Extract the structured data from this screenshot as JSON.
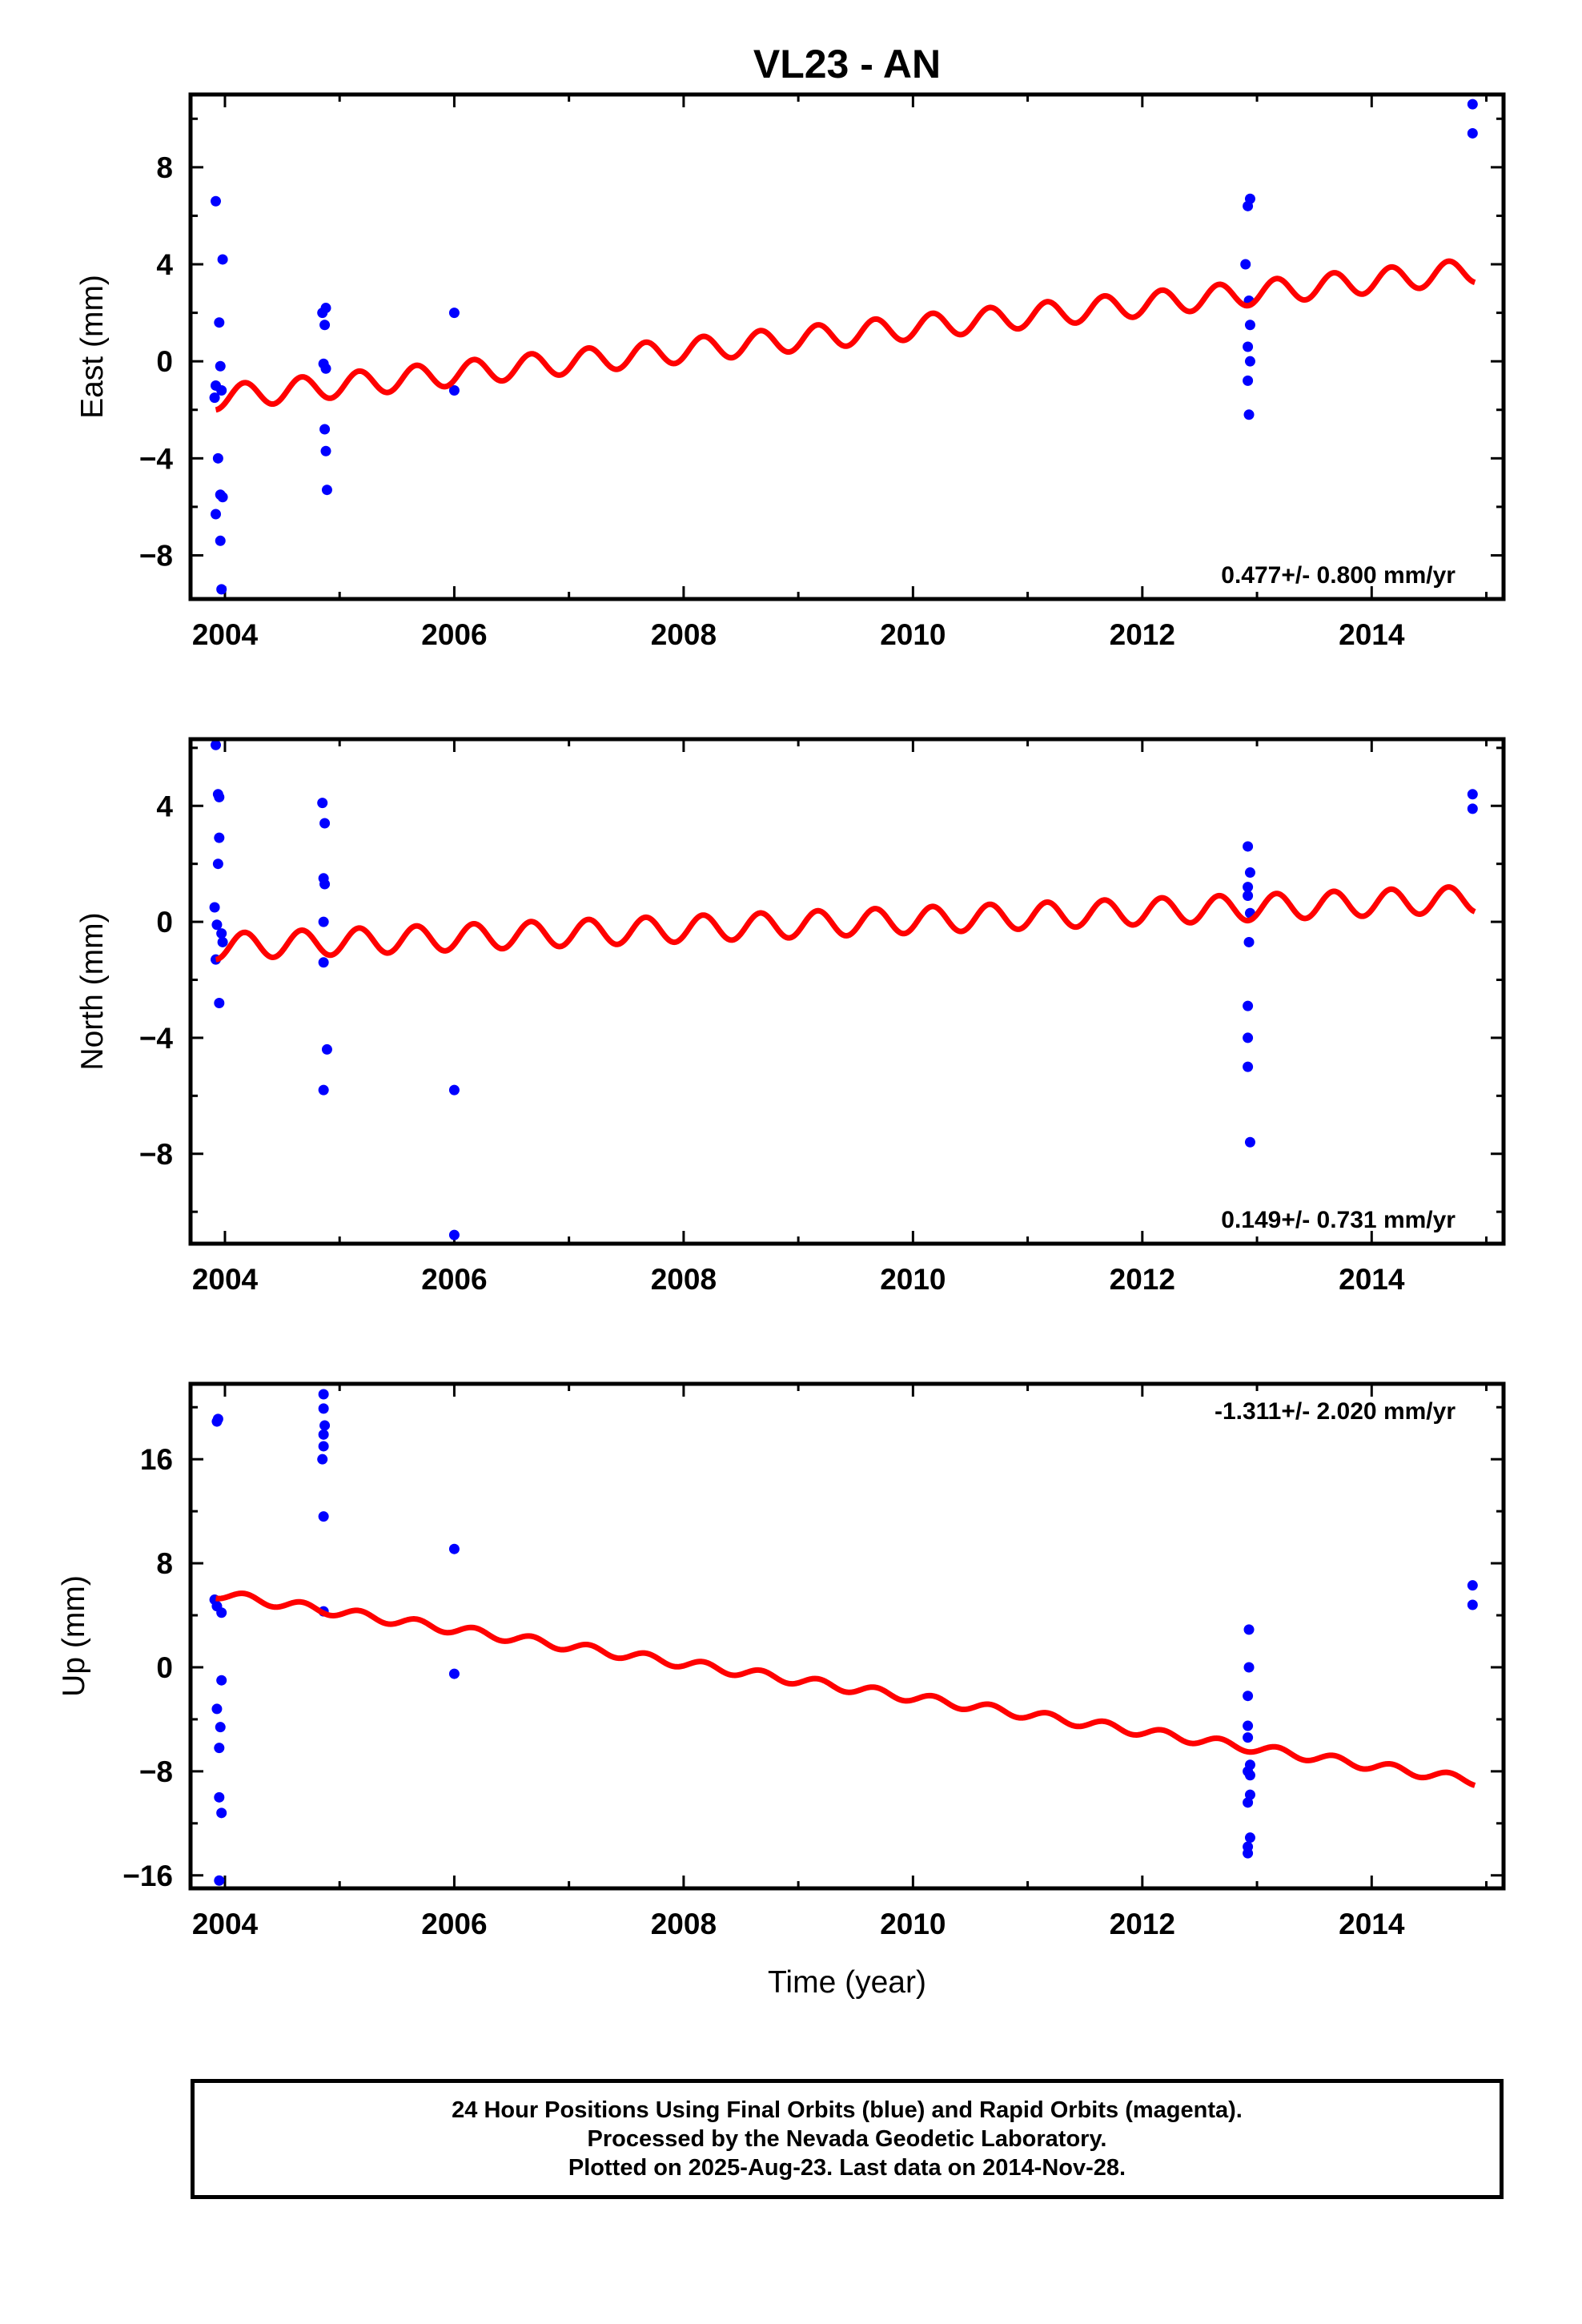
{
  "title": "VL23 - AN",
  "footer": {
    "line1": "24 Hour Positions Using Final Orbits (blue) and Rapid Orbits (magenta).",
    "line2": "Processed by the Nevada Geodetic Laboratory.",
    "line3": "Plotted on 2025-Aug-23. Last data on 2014-Nov-28."
  },
  "colors": {
    "final_orbits": "#0000ff",
    "model_fit": "#ff0000"
  },
  "chart_data": [
    {
      "type": "scatter",
      "name": "east",
      "title": "VL23 - AN",
      "xlabel": "",
      "ylabel": "East (mm)",
      "xlim": [
        2003.7,
        2015.15
      ],
      "ylim": [
        -9.8,
        11.0
      ],
      "xticks": [
        2004,
        2006,
        2008,
        2010,
        2012,
        2014
      ],
      "yticks": [
        -8,
        -4,
        0,
        4,
        8
      ],
      "ytick_labels": [
        "−8",
        "−4",
        "0",
        "4",
        "8"
      ],
      "rate": "0.477+/- 0.800 mm/yr",
      "rate_position": "bottom-right",
      "points": [
        [
          2003.92,
          6.6
        ],
        [
          2003.92,
          -1.0
        ],
        [
          2003.91,
          -1.5
        ],
        [
          2003.92,
          -6.3
        ],
        [
          2003.94,
          -4.0
        ],
        [
          2003.95,
          1.6
        ],
        [
          2003.96,
          -0.2
        ],
        [
          2003.97,
          -1.2
        ],
        [
          2003.96,
          -5.5
        ],
        [
          2003.98,
          -5.6
        ],
        [
          2003.96,
          -7.4
        ],
        [
          2003.97,
          -9.4
        ],
        [
          2003.98,
          4.2
        ],
        [
          2004.85,
          2.0
        ],
        [
          2004.87,
          1.5
        ],
        [
          2004.88,
          2.2
        ],
        [
          2004.86,
          -0.1
        ],
        [
          2004.88,
          -0.3
        ],
        [
          2004.87,
          -2.8
        ],
        [
          2004.88,
          -3.7
        ],
        [
          2004.89,
          -5.3
        ],
        [
          2006.0,
          2.0
        ],
        [
          2006.0,
          -1.2
        ],
        [
          2012.9,
          4.0
        ],
        [
          2012.92,
          6.4
        ],
        [
          2012.94,
          6.7
        ],
        [
          2012.93,
          2.5
        ],
        [
          2012.94,
          1.5
        ],
        [
          2012.92,
          0.6
        ],
        [
          2012.94,
          0.0
        ],
        [
          2012.92,
          -0.8
        ],
        [
          2012.93,
          -2.2
        ],
        [
          2014.88,
          10.6
        ],
        [
          2014.88,
          9.4
        ]
      ],
      "model": {
        "start": 2003.92,
        "end": 2014.9,
        "offset": -1.7,
        "rate": 0.477,
        "amplitude": 0.5,
        "period": 0.5,
        "trend_start": -2.0
      }
    },
    {
      "type": "scatter",
      "name": "north",
      "xlabel": "",
      "ylabel": "North (mm)",
      "xlim": [
        2003.7,
        2015.15
      ],
      "ylim": [
        -11.1,
        6.3
      ],
      "xticks": [
        2004,
        2006,
        2008,
        2010,
        2012,
        2014
      ],
      "yticks": [
        -8,
        -4,
        0,
        4
      ],
      "ytick_labels": [
        "−8",
        "−4",
        "0",
        "4"
      ],
      "rate": "0.149+/- 0.731 mm/yr",
      "rate_position": "bottom-right",
      "points": [
        [
          2003.92,
          6.1
        ],
        [
          2003.94,
          4.4
        ],
        [
          2003.95,
          4.3
        ],
        [
          2003.95,
          2.9
        ],
        [
          2003.94,
          2.0
        ],
        [
          2003.91,
          0.5
        ],
        [
          2003.93,
          -0.1
        ],
        [
          2003.97,
          -0.4
        ],
        [
          2003.98,
          -0.7
        ],
        [
          2003.92,
          -1.3
        ],
        [
          2003.95,
          -2.8
        ],
        [
          2004.85,
          4.1
        ],
        [
          2004.87,
          3.4
        ],
        [
          2004.86,
          1.5
        ],
        [
          2004.87,
          1.3
        ],
        [
          2004.86,
          0.0
        ],
        [
          2004.86,
          -1.4
        ],
        [
          2004.89,
          -4.4
        ],
        [
          2004.86,
          -5.8
        ],
        [
          2006.0,
          -5.8
        ],
        [
          2006.0,
          -10.8
        ],
        [
          2012.92,
          2.6
        ],
        [
          2012.94,
          1.7
        ],
        [
          2012.92,
          1.2
        ],
        [
          2012.92,
          0.9
        ],
        [
          2012.94,
          0.3
        ],
        [
          2012.93,
          -0.7
        ],
        [
          2012.92,
          -2.9
        ],
        [
          2012.92,
          -4.0
        ],
        [
          2012.92,
          -5.0
        ],
        [
          2012.94,
          -7.6
        ],
        [
          2014.88,
          4.4
        ],
        [
          2014.88,
          3.9
        ]
      ],
      "model": {
        "start": 2003.92,
        "end": 2014.9,
        "trend_start": -1.3,
        "rate": 0.149,
        "amplitude": 0.45,
        "period": 0.5
      }
    },
    {
      "type": "scatter",
      "name": "up",
      "xlabel": "Time (year)",
      "ylabel": "Up (mm)",
      "xlim": [
        2003.7,
        2015.15
      ],
      "ylim": [
        -17.0,
        21.8
      ],
      "xticks": [
        2004,
        2006,
        2008,
        2010,
        2012,
        2014
      ],
      "yticks": [
        -16,
        -8,
        0,
        8,
        16
      ],
      "ytick_labels": [
        "−16",
        "−8",
        "0",
        "8",
        "16"
      ],
      "rate": "-1.311+/- 2.020 mm/yr",
      "rate_position": "top-right",
      "points": [
        [
          2003.93,
          18.9
        ],
        [
          2003.94,
          19.1
        ],
        [
          2003.91,
          5.2
        ],
        [
          2003.93,
          4.7
        ],
        [
          2003.97,
          4.2
        ],
        [
          2003.97,
          -1.0
        ],
        [
          2003.93,
          -3.2
        ],
        [
          2003.96,
          -4.6
        ],
        [
          2003.95,
          -6.2
        ],
        [
          2003.95,
          -10.0
        ],
        [
          2003.97,
          -11.2
        ],
        [
          2003.95,
          -16.4
        ],
        [
          2004.86,
          21.0
        ],
        [
          2004.86,
          19.9
        ],
        [
          2004.87,
          18.6
        ],
        [
          2004.86,
          17.9
        ],
        [
          2004.86,
          17.0
        ],
        [
          2004.85,
          16.0
        ],
        [
          2004.86,
          11.6
        ],
        [
          2004.86,
          4.3
        ],
        [
          2006.0,
          9.1
        ],
        [
          2006.0,
          -0.5
        ],
        [
          2012.93,
          2.9
        ],
        [
          2012.93,
          0.0
        ],
        [
          2012.92,
          -2.2
        ],
        [
          2012.92,
          -4.5
        ],
        [
          2012.92,
          -5.4
        ],
        [
          2012.94,
          -7.5
        ],
        [
          2012.92,
          -8.0
        ],
        [
          2012.94,
          -8.3
        ],
        [
          2012.94,
          -9.8
        ],
        [
          2012.92,
          -10.4
        ],
        [
          2012.94,
          -13.1
        ],
        [
          2012.92,
          -13.8
        ],
        [
          2012.92,
          -14.3
        ],
        [
          2014.88,
          6.3
        ],
        [
          2014.88,
          4.8
        ]
      ],
      "model": {
        "start": 2003.92,
        "end": 2014.9,
        "trend_start": 5.3,
        "rate": -1.311,
        "amplitude": 0.35,
        "period": 0.5
      }
    }
  ]
}
